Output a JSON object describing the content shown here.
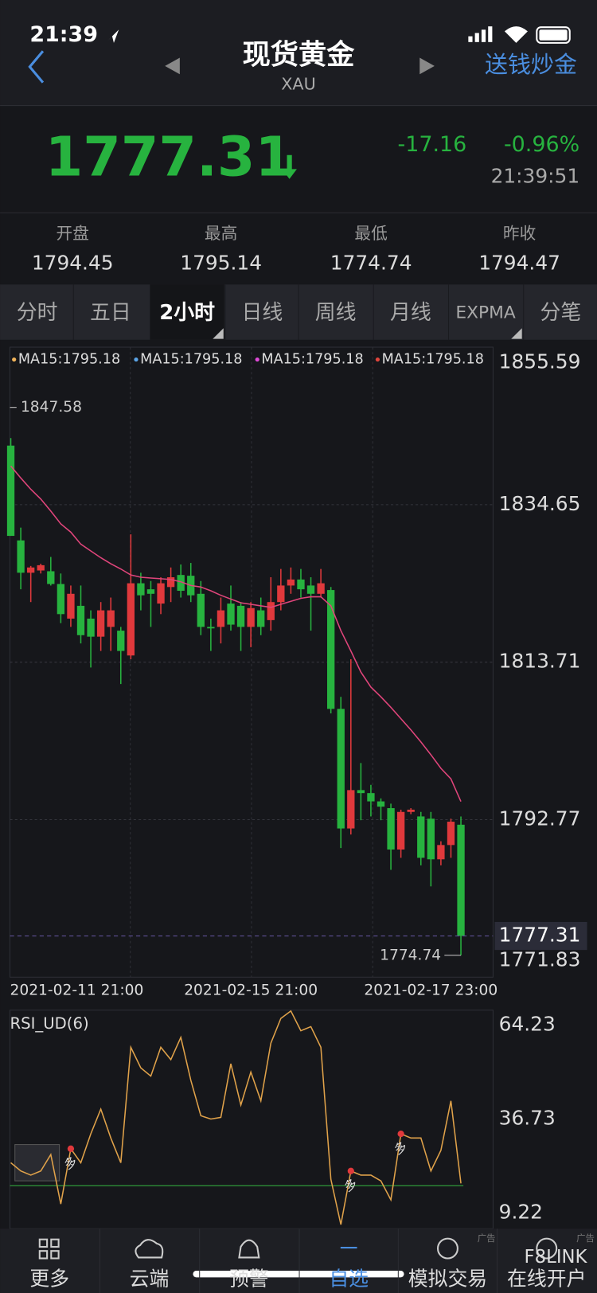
{
  "status_bar": {
    "time": "21:39"
  },
  "header": {
    "title": "现货黄金",
    "subtitle": "XAU",
    "link": "送钱炒金"
  },
  "quote": {
    "price": "1777.31",
    "change": "-17.16",
    "change_pct": "-0.96%",
    "time": "21:39:51"
  },
  "stats": [
    {
      "label": "开盘",
      "value": "1794.45"
    },
    {
      "label": "最高",
      "value": "1795.14"
    },
    {
      "label": "最低",
      "value": "1774.74"
    },
    {
      "label": "昨收",
      "value": "1794.47"
    }
  ],
  "tabs": [
    "分时",
    "五日",
    "2小时",
    "日线",
    "周线",
    "月线",
    "EXPMA",
    "分笔"
  ],
  "active_tab": 2,
  "chart_data": [
    {
      "type": "candlestick",
      "legend": [
        {
          "label": "MA15:1795.18",
          "color": "#f0b35a"
        },
        {
          "label": "MA15:1795.18",
          "color": "#5ba4e6"
        },
        {
          "label": "MA15:1795.18",
          "color": "#e04ad8"
        },
        {
          "label": "MA15:1795.18",
          "color": "#e0453c"
        }
      ],
      "categories": [
        "2021-02-11 21:00",
        null,
        null,
        null,
        null,
        null,
        null,
        null,
        null,
        null,
        null,
        null,
        null,
        null,
        null,
        null,
        null,
        null,
        null,
        null,
        null,
        null,
        null,
        null,
        "2021-02-15 21:00",
        null,
        null,
        null,
        null,
        null,
        null,
        null,
        null,
        null,
        null,
        null,
        null,
        null,
        null,
        null,
        null,
        null,
        "2021-02-17 23:00",
        null,
        null,
        null
      ],
      "open": [
        1842.5,
        1829.9,
        1825.6,
        1825.9,
        1825.8,
        1824.1,
        1819.5,
        1821.2,
        1819.5,
        1817.1,
        1818.4,
        1817.9,
        1814.6,
        1824.2,
        1823.4,
        1821.5,
        1823.7,
        1825.3,
        1825.2,
        1822.8,
        1818.4,
        1818.4,
        1821.5,
        1821.2,
        1818.4,
        1820.6,
        1819.3,
        1821.7,
        1823.9,
        1824.7,
        1823.9,
        1822.8,
        1823.3,
        1807.5,
        1791.6,
        1796.7,
        1796.3,
        1795.2,
        1794.3,
        1788.8,
        1793.8,
        1793.2,
        1792.9,
        1787.5,
        1789.4,
        1792.1
      ],
      "high": [
        1843.5,
        1831.6,
        1826.5,
        1826.8,
        1827.7,
        1825.5,
        1823.9,
        1823.9,
        1820.6,
        1821.7,
        1822.3,
        1818.4,
        1830.7,
        1825.6,
        1824.5,
        1825.0,
        1826.3,
        1826.7,
        1826.9,
        1824.5,
        1819.5,
        1822.3,
        1823.9,
        1821.7,
        1821.7,
        1822.3,
        1825.0,
        1826.1,
        1826.3,
        1826.1,
        1825.0,
        1826.1,
        1823.7,
        1809.1,
        1814.1,
        1800.3,
        1797.4,
        1795.6,
        1794.9,
        1794.1,
        1794.3,
        1793.8,
        1793.8,
        1789.9,
        1792.9,
        1793.2
      ],
      "low": [
        1830.5,
        1823.4,
        1821.7,
        1825.5,
        1823.9,
        1818.9,
        1818.4,
        1816.2,
        1813.0,
        1815.2,
        1815.2,
        1810.8,
        1814.1,
        1820.6,
        1818.4,
        1820.1,
        1821.7,
        1822.3,
        1821.7,
        1817.3,
        1815.2,
        1816.2,
        1817.9,
        1815.2,
        1815.7,
        1817.3,
        1817.9,
        1820.6,
        1822.8,
        1822.3,
        1817.9,
        1822.3,
        1806.9,
        1789.0,
        1790.8,
        1792.7,
        1793.2,
        1792.7,
        1786.1,
        1787.7,
        1793.5,
        1786.7,
        1783.9,
        1786.7,
        1787.7,
        1774.74
      ],
      "close": [
        1830.5,
        1825.6,
        1826.3,
        1826.6,
        1824.1,
        1820.1,
        1822.8,
        1817.3,
        1817.1,
        1820.6,
        1820.6,
        1815.2,
        1824.2,
        1822.6,
        1822.8,
        1824.2,
        1825.0,
        1823.2,
        1822.6,
        1818.4,
        1818.2,
        1820.6,
        1818.7,
        1818.4,
        1820.9,
        1818.4,
        1821.7,
        1823.9,
        1824.7,
        1823.4,
        1822.8,
        1824.2,
        1807.5,
        1791.6,
        1796.7,
        1796.3,
        1795.2,
        1794.5,
        1788.8,
        1793.8,
        1794.1,
        1787.7,
        1787.5,
        1789.4,
        1792.5,
        1777.31
      ],
      "up_color": "#e0393c",
      "down_color": "#27b33f",
      "ma": {
        "color": "#e0457b",
        "values": [
          1839.8,
          1838.2,
          1836.7,
          1835.4,
          1833.8,
          1832.1,
          1831.0,
          1829.4,
          1828.5,
          1827.6,
          1826.8,
          1826.1,
          1825.3,
          1825.0,
          1824.9,
          1824.8,
          1824.7,
          1824.4,
          1823.9,
          1823.7,
          1823.2,
          1822.6,
          1822.1,
          1821.6,
          1821.4,
          1821.2,
          1821.0,
          1821.4,
          1821.8,
          1822.2,
          1822.4,
          1822.4,
          1821.2,
          1817.9,
          1815.2,
          1812.4,
          1810.4,
          1809.1,
          1807.7,
          1806.2,
          1804.7,
          1803.1,
          1801.4,
          1799.6,
          1798.2,
          1795.18
        ]
      },
      "ylim": [
        1771.83,
        1855.59
      ],
      "yticks": [
        1855.59,
        1834.65,
        1813.71,
        1792.77,
        1771.83
      ],
      "grid": true,
      "max_label": {
        "value": 1847.58,
        "label": "1847.58"
      },
      "min_label": {
        "value": 1774.74,
        "label": "1774.74"
      },
      "last": {
        "value": 1777.31,
        "label": "1777.31"
      }
    },
    {
      "type": "line",
      "title": "RSI_UD(6)",
      "color": "#e0a24a",
      "values": [
        23.93,
        21.52,
        20.31,
        21.52,
        26.34,
        11.87,
        28.03,
        23.93,
        32.38,
        39.62,
        31.17,
        23.93,
        57.71,
        51.68,
        49.27,
        57.71,
        54.09,
        60.61,
        48.06,
        37.69,
        36.72,
        37.2,
        52.89,
        40.82,
        50.47,
        42.03,
        58.92,
        66.16,
        68.33,
        62.54,
        63.75,
        57.71,
        19.1,
        5.83,
        21.52,
        20.31,
        20.31,
        18.62,
        13.07,
        32.38,
        31.17,
        31.17,
        21.52,
        27.55,
        42.03,
        17.9
      ],
      "ylim": [
        4.64,
        68.57
      ],
      "yticks": [
        64.23,
        36.73,
        9.22
      ],
      "grid": false,
      "threshold": {
        "value": 17.2,
        "color": "#2f9a3a"
      },
      "signals": [
        {
          "index": 6,
          "label": "多"
        },
        {
          "index": 34,
          "label": "多"
        },
        {
          "index": 39,
          "label": "多"
        }
      ]
    }
  ],
  "nav": [
    {
      "label": "更多"
    },
    {
      "label": "云端"
    },
    {
      "label": "预警"
    },
    {
      "label": "自选"
    },
    {
      "label": "模拟交易",
      "tag": "广告"
    },
    {
      "label": "在线开户",
      "tag": "广告"
    }
  ],
  "active_nav": 3,
  "watermark": "F8LINK"
}
